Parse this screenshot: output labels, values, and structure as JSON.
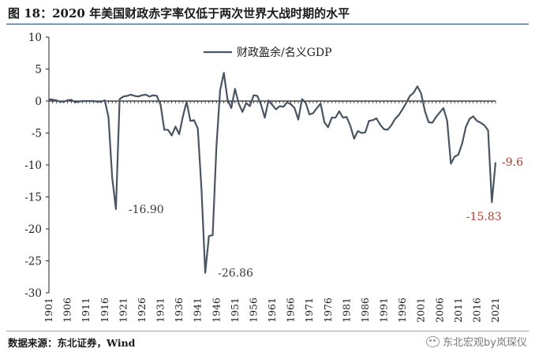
{
  "title": "图 18：2020 年美国财政赤字率仅低于两次世界大战时期的水平",
  "source": "数据来源：东北证券，Wind",
  "watermark": "东北宏观by岚琛仪",
  "watermark_icon": "wechat-icon",
  "colors": {
    "line": "#4a5563",
    "title_rule": "#1a3f7a",
    "annotation_red": "#c0392b",
    "annotation_gray": "#3a3a3a"
  },
  "chart_data": {
    "type": "line",
    "title": "",
    "xlabel": "",
    "ylabel": "",
    "ylim": [
      -30,
      10
    ],
    "yticks": [
      10,
      5,
      0,
      -5,
      -10,
      -15,
      -20,
      -25,
      -30
    ],
    "xlim": [
      1901,
      2021
    ],
    "xticks": [
      1901,
      1906,
      1911,
      1916,
      1921,
      1926,
      1931,
      1936,
      1941,
      1946,
      1951,
      1956,
      1961,
      1966,
      1971,
      1976,
      1981,
      1986,
      1991,
      1996,
      2001,
      2006,
      2011,
      2016,
      2021
    ],
    "grid": false,
    "legend": {
      "position": "top-center",
      "entries": [
        "财政盈余/名义GDP"
      ]
    },
    "series": [
      {
        "name": "财政盈余/名义GDP",
        "x": [
          1901,
          1902,
          1903,
          1904,
          1905,
          1906,
          1907,
          1908,
          1909,
          1910,
          1911,
          1912,
          1913,
          1914,
          1915,
          1916,
          1917,
          1918,
          1919,
          1920,
          1921,
          1922,
          1923,
          1924,
          1925,
          1926,
          1927,
          1928,
          1929,
          1930,
          1931,
          1932,
          1933,
          1934,
          1935,
          1936,
          1937,
          1938,
          1939,
          1940,
          1941,
          1942,
          1943,
          1944,
          1945,
          1946,
          1947,
          1948,
          1949,
          1950,
          1951,
          1952,
          1953,
          1954,
          1955,
          1956,
          1957,
          1958,
          1959,
          1960,
          1961,
          1962,
          1963,
          1964,
          1965,
          1966,
          1967,
          1968,
          1969,
          1970,
          1971,
          1972,
          1973,
          1974,
          1975,
          1976,
          1977,
          1978,
          1979,
          1980,
          1981,
          1982,
          1983,
          1984,
          1985,
          1986,
          1987,
          1988,
          1989,
          1990,
          1991,
          1992,
          1993,
          1994,
          1995,
          1996,
          1997,
          1998,
          1999,
          2000,
          2001,
          2002,
          2003,
          2004,
          2005,
          2006,
          2007,
          2008,
          2009,
          2010,
          2011,
          2012,
          2013,
          2014,
          2015,
          2016,
          2017,
          2018,
          2019,
          2020,
          2021
        ],
        "y": [
          0.3,
          0.2,
          0.1,
          -0.1,
          -0.1,
          0.1,
          0.2,
          -0.2,
          -0.1,
          0,
          0,
          0,
          0,
          -0.1,
          -0.1,
          0.1,
          -2.5,
          -12,
          -16.9,
          0.3,
          0.7,
          0.8,
          1,
          0.8,
          0.7,
          0.9,
          1,
          0.7,
          0.9,
          0.8,
          -0.6,
          -4.5,
          -4.5,
          -5.4,
          -4,
          -5.2,
          -2.4,
          -0.1,
          -3.1,
          -3,
          -4.3,
          -13.9,
          -26.86,
          -21.1,
          -21,
          -7.2,
          1.7,
          4.4,
          0.2,
          -1.1,
          1.9,
          -0.4,
          -1.7,
          -0.3,
          -0.8,
          0.9,
          0.8,
          -0.6,
          -2.6,
          0.1,
          -0.6,
          -1.3,
          -0.8,
          -0.9,
          -0.2,
          -0.5,
          -1.1,
          -2.9,
          0.3,
          -0.3,
          -2.1,
          -1.9,
          -1.1,
          -0.4,
          -3.3,
          -4.1,
          -2.6,
          -2.6,
          -1.6,
          -2.6,
          -2.5,
          -3.9,
          -5.9,
          -4.7,
          -5.0,
          -4.9,
          -3.1,
          -3.0,
          -2.7,
          -3.7,
          -4.4,
          -4.5,
          -3.8,
          -2.8,
          -2.2,
          -1.3,
          -0.3,
          0.8,
          1.3,
          2.3,
          1.2,
          -1.5,
          -3.3,
          -3.4,
          -2.5,
          -1.8,
          -1.1,
          -3.1,
          -9.8,
          -8.7,
          -8.4,
          -6.7,
          -4.1,
          -2.8,
          -2.4,
          -3.1,
          -3.4,
          -3.8,
          -4.6,
          -15.83,
          -9.6
        ]
      }
    ],
    "annotations": [
      {
        "x": 1919,
        "y": -16.9,
        "text": "-16.90",
        "color": "gray",
        "anchor": "right"
      },
      {
        "x": 1943,
        "y": -26.86,
        "text": "-26.86",
        "color": "gray",
        "anchor": "right"
      },
      {
        "x": 2020,
        "y": -15.83,
        "text": "-15.83",
        "color": "red",
        "anchor": "below"
      },
      {
        "x": 2021,
        "y": -9.6,
        "text": "-9.6",
        "color": "red",
        "anchor": "right"
      }
    ]
  }
}
